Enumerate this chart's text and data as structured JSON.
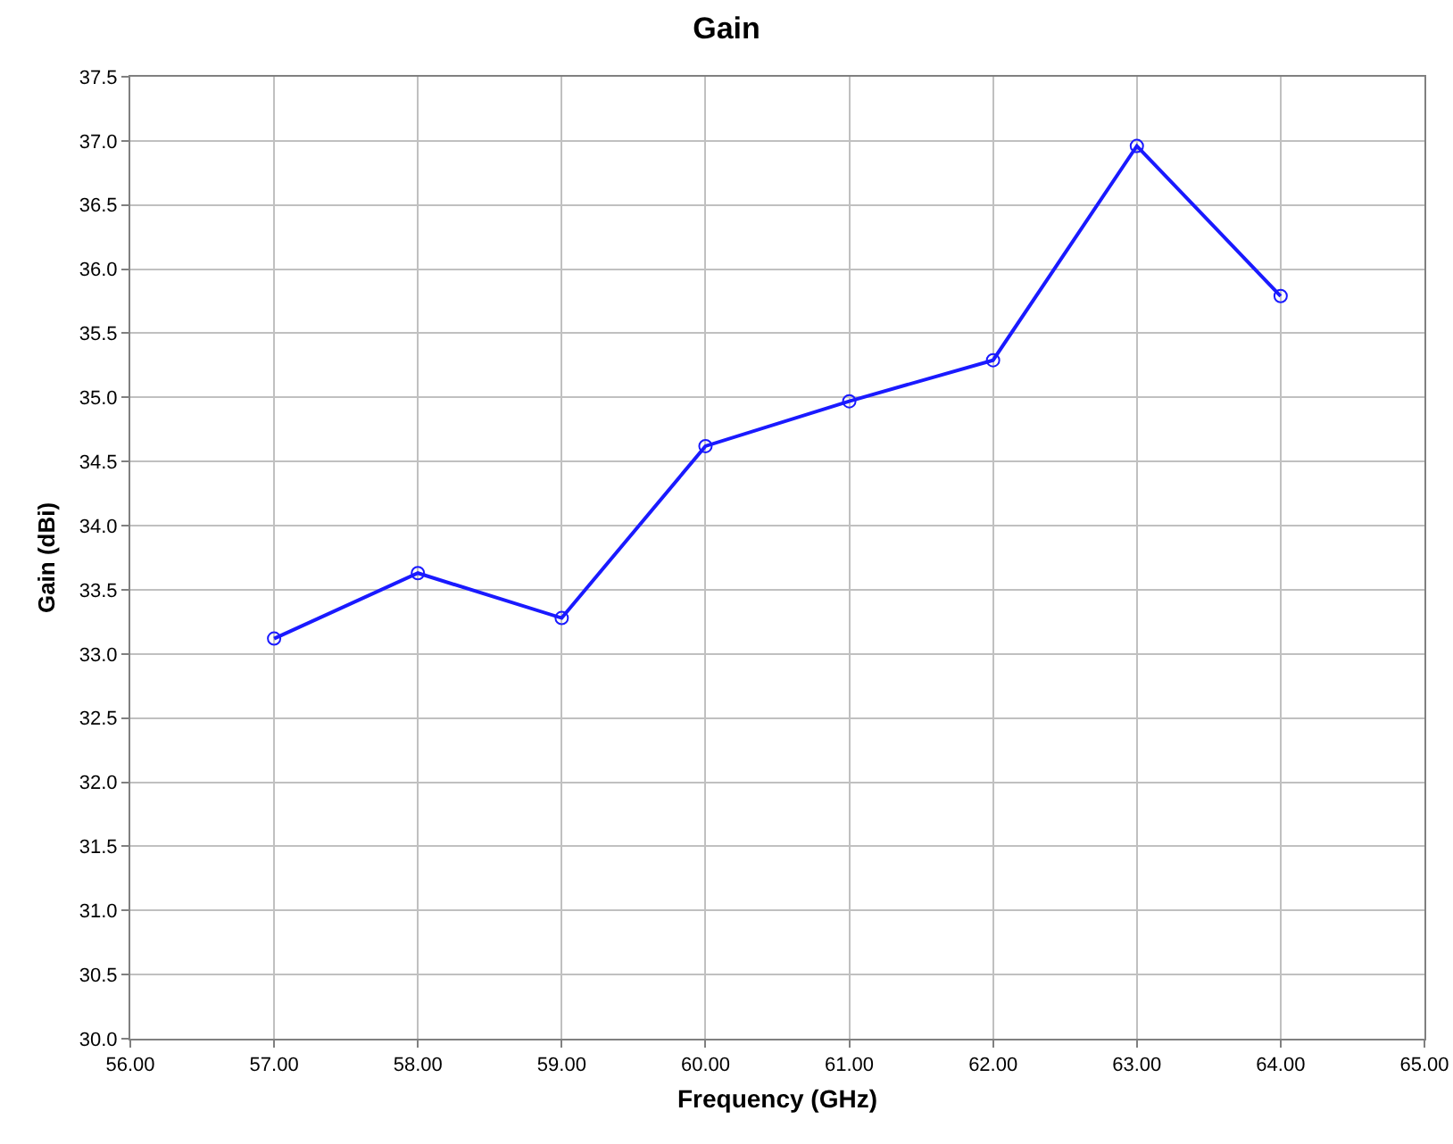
{
  "chart_data": {
    "type": "line",
    "title": "Gain",
    "xlabel": "Frequency (GHz)",
    "ylabel": "Gain (dBi)",
    "x": [
      57,
      58,
      59,
      60,
      61,
      62,
      63,
      64
    ],
    "series": [
      {
        "color": "#1a1aff",
        "values": [
          33.12,
          33.63,
          33.28,
          34.62,
          34.97,
          35.29,
          36.96,
          35.79
        ]
      }
    ],
    "xlim": [
      56,
      65
    ],
    "xticks": [
      {
        "value": 56,
        "label": "56.00"
      },
      {
        "value": 57,
        "label": "57.00"
      },
      {
        "value": 58,
        "label": "58.00"
      },
      {
        "value": 59,
        "label": "59.00"
      },
      {
        "value": 60,
        "label": "60.00"
      },
      {
        "value": 61,
        "label": "61.00"
      },
      {
        "value": 62,
        "label": "62.00"
      },
      {
        "value": 63,
        "label": "63.00"
      },
      {
        "value": 64,
        "label": "64.00"
      },
      {
        "value": 65,
        "label": "65.00"
      }
    ],
    "ylim": [
      30,
      37.5
    ],
    "yticks": [
      {
        "value": 30,
        "label": "30.0"
      },
      30.5,
      {
        "value": 31,
        "label": "31.0"
      },
      31.5,
      {
        "value": 32,
        "label": "32.0"
      },
      32.5,
      {
        "value": 33,
        "label": "33.0"
      },
      33.5,
      {
        "value": 34,
        "label": "34.0"
      },
      34.5,
      {
        "value": 35,
        "label": "35.0"
      },
      35.5,
      {
        "value": 36,
        "label": "36.0"
      },
      36.5,
      {
        "value": 37,
        "label": "37.0"
      },
      37.5
    ],
    "grid": true,
    "marker": "circle",
    "line_style": "solid"
  }
}
